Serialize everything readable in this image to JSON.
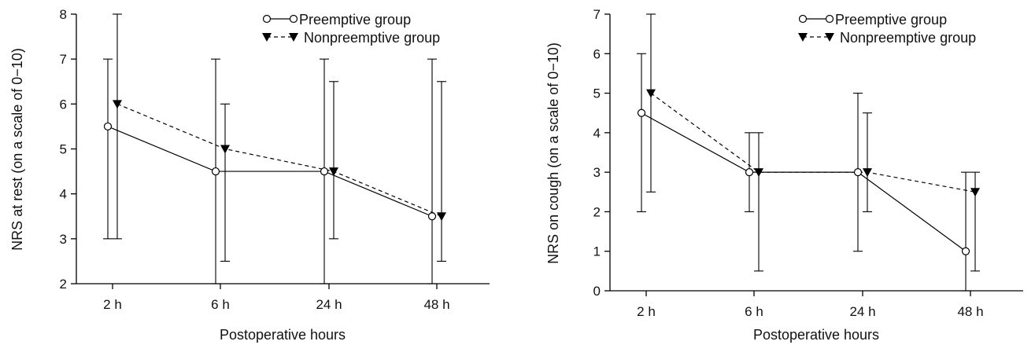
{
  "chart_data": [
    {
      "type": "line",
      "xlabel": "Postoperative hours",
      "ylabel": "NRS at rest (on a scale of 0−10)",
      "categories": [
        "2 h",
        "6 h",
        "24 h",
        "48 h"
      ],
      "ylim": [
        2,
        8
      ],
      "yticks": [
        "2",
        "3",
        "4",
        "5",
        "6",
        "7",
        "8"
      ],
      "legend_position": "top-right",
      "series": [
        {
          "name": "Preemptive group",
          "marker": "open-circle",
          "line": "solid",
          "values": [
            5.5,
            4.5,
            4.5,
            3.5
          ],
          "error_low": [
            3,
            2,
            2,
            2
          ],
          "error_high": [
            7,
            7,
            7,
            7
          ]
        },
        {
          "name": "Nonpreemptive group",
          "marker": "filled-down-triangle",
          "line": "dashed",
          "values": [
            6,
            5,
            4.5,
            3.5
          ],
          "error_low": [
            3,
            2.5,
            3,
            2.5
          ],
          "error_high": [
            8,
            6,
            6.5,
            6.5
          ]
        }
      ]
    },
    {
      "type": "line",
      "xlabel": "Postoperative hours",
      "ylabel": "NRS on cough (on a scale of 0−10)",
      "categories": [
        "2 h",
        "6 h",
        "24 h",
        "48 h"
      ],
      "ylim": [
        0,
        7
      ],
      "yticks": [
        "0",
        "1",
        "2",
        "3",
        "4",
        "5",
        "6",
        "7"
      ],
      "legend_position": "top-right",
      "series": [
        {
          "name": "Preemptive group",
          "marker": "open-circle",
          "line": "solid",
          "values": [
            4.5,
            3,
            3,
            1
          ],
          "error_low": [
            2,
            2,
            1,
            0
          ],
          "error_high": [
            6,
            4,
            5,
            3
          ]
        },
        {
          "name": "Nonpreemptive group",
          "marker": "filled-down-triangle",
          "line": "dashed",
          "values": [
            5,
            3,
            3,
            2.5
          ],
          "error_low": [
            2.5,
            0.5,
            2,
            0.5
          ],
          "error_high": [
            7,
            4,
            4.5,
            3
          ]
        }
      ]
    }
  ]
}
